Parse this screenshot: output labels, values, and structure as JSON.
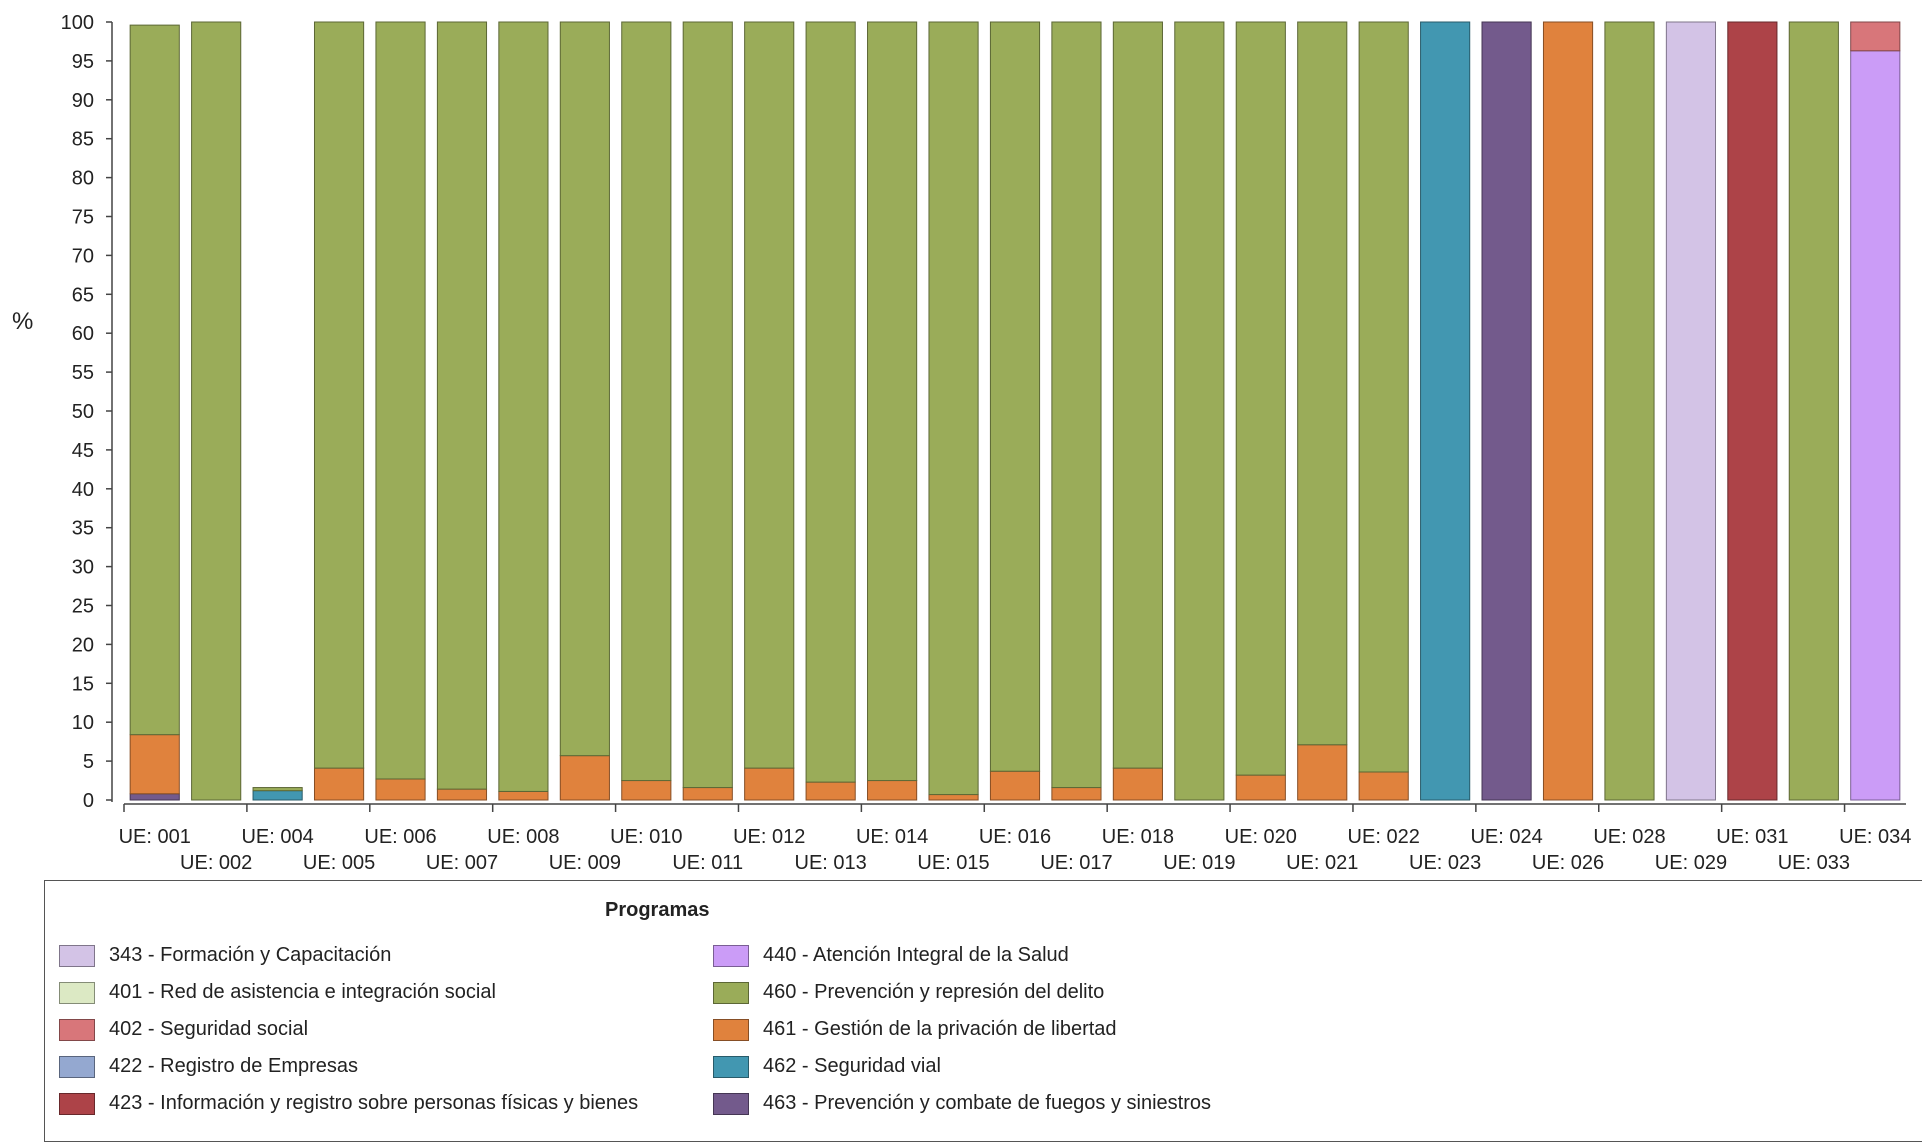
{
  "chart_data": {
    "type": "bar",
    "stacked": true,
    "title": "",
    "xlabel": "",
    "ylabel": "%",
    "ylim": [
      0,
      100
    ],
    "yticks": [
      0,
      5,
      10,
      15,
      20,
      25,
      30,
      35,
      40,
      45,
      50,
      55,
      60,
      65,
      70,
      75,
      80,
      85,
      90,
      95,
      100
    ],
    "grid": false,
    "legend_title": "Programas",
    "legend_position": "bottom",
    "categories": [
      "UE: 001",
      "UE: 002",
      "UE: 004",
      "UE: 005",
      "UE: 006",
      "UE: 007",
      "UE: 008",
      "UE: 009",
      "UE: 010",
      "UE: 011",
      "UE: 012",
      "UE: 013",
      "UE: 014",
      "UE: 015",
      "UE: 016",
      "UE: 017",
      "UE: 018",
      "UE: 019",
      "UE: 020",
      "UE: 021",
      "UE: 022",
      "UE: 023",
      "UE: 024",
      "UE: 026",
      "UE: 028",
      "UE: 029",
      "UE: 031",
      "UE: 033",
      "UE: 034"
    ],
    "series": [
      {
        "name": "343 - Formación y Capacitación",
        "color": "#d3c3e6",
        "values": [
          0,
          0,
          0,
          0,
          0,
          0,
          0,
          0,
          0,
          0,
          0,
          0,
          0,
          0,
          0,
          0,
          0,
          0,
          0,
          0,
          0,
          0,
          0,
          0,
          0,
          100,
          0,
          0,
          0
        ]
      },
      {
        "name": "401 - Red de asistencia e integración social",
        "color": "#dce9c4",
        "values": [
          0,
          0,
          0,
          0,
          0,
          0,
          0,
          0,
          0,
          0,
          0,
          0,
          0,
          0,
          0,
          0,
          0,
          0,
          0,
          0,
          0,
          0,
          0,
          0,
          0,
          0,
          0,
          0,
          0
        ]
      },
      {
        "name": "402 - Seguridad social",
        "color": "#d8767a",
        "values": [
          0,
          0,
          0,
          0,
          0,
          0,
          0,
          0,
          0,
          0,
          0,
          0,
          0,
          0,
          0,
          0,
          0,
          0,
          0,
          0,
          0,
          0,
          0,
          0,
          0,
          0,
          0,
          0,
          3.7
        ]
      },
      {
        "name": "422 - Registro de Empresas",
        "color": "#94a8d0",
        "values": [
          0,
          0,
          0,
          0,
          0,
          0,
          0,
          0,
          0,
          0,
          0,
          0,
          0,
          0,
          0,
          0,
          0,
          0,
          0,
          0,
          0,
          0,
          0,
          0,
          0,
          0,
          0,
          0,
          0
        ]
      },
      {
        "name": "423 - Información y registro sobre personas físicas y bienes",
        "color": "#ad4348",
        "values": [
          0,
          0,
          0,
          0,
          0,
          0,
          0,
          0,
          0,
          0,
          0,
          0,
          0,
          0,
          0,
          0,
          0,
          0,
          0,
          0,
          0,
          0,
          0,
          0,
          0,
          0,
          100,
          0,
          0
        ]
      },
      {
        "name": "440 - Atención Integral de la Salud",
        "color": "#cb9cf7",
        "values": [
          0,
          0,
          0,
          0,
          0,
          0,
          0,
          0,
          0,
          0,
          0,
          0,
          0,
          0,
          0,
          0,
          0,
          0,
          0,
          0,
          0,
          0,
          0,
          0,
          0,
          0,
          0,
          0,
          96.3
        ]
      },
      {
        "name": "460 - Prevención y represión del delito",
        "color": "#9aac59",
        "values": [
          91.2,
          100,
          0.4,
          95.9,
          97.3,
          98.6,
          98.9,
          94.3,
          97.5,
          98.4,
          95.9,
          97.7,
          97.5,
          99.3,
          96.3,
          98.4,
          95.9,
          100,
          96.8,
          92.9,
          96.4,
          0,
          0,
          0,
          100,
          0,
          0,
          100,
          0
        ]
      },
      {
        "name": "461 - Gestión de la privación de libertad",
        "color": "#e0823d",
        "values": [
          7.6,
          0,
          0,
          4.1,
          2.7,
          1.4,
          1.1,
          5.7,
          2.5,
          1.6,
          4.1,
          2.3,
          2.5,
          0.7,
          3.7,
          1.6,
          4.1,
          0,
          3.2,
          7.1,
          3.6,
          0,
          0,
          100,
          0,
          0,
          0,
          0,
          0
        ]
      },
      {
        "name": "462 - Seguridad vial",
        "color": "#4297b1",
        "values": [
          0,
          0,
          1.2,
          0,
          0,
          0,
          0,
          0,
          0,
          0,
          0,
          0,
          0,
          0,
          0,
          0,
          0,
          0,
          0,
          0,
          0,
          100,
          0,
          0,
          0,
          0,
          0,
          0,
          0
        ]
      },
      {
        "name": "463 - Prevención y combate de fuegos y siniestros",
        "color": "#735a8c",
        "values": [
          0.8,
          0,
          0,
          0,
          0,
          0,
          0,
          0,
          0,
          0,
          0,
          0,
          0,
          0,
          0,
          0,
          0,
          0,
          0,
          0,
          0,
          0,
          100,
          0,
          0,
          0,
          0,
          0,
          0
        ]
      }
    ],
    "stack_order": [
      "463 - Prevención y combate de fuegos y siniestros",
      "462 - Seguridad vial",
      "461 - Gestión de la privación de libertad",
      "460 - Prevención y represión del delito",
      "440 - Atención Integral de la Salud",
      "423 - Información y registro sobre personas físicas y bienes",
      "422 - Registro de Empresas",
      "402 - Seguridad social",
      "401 - Red de asistencia e integración social",
      "343 - Formación y Capacitación"
    ]
  }
}
